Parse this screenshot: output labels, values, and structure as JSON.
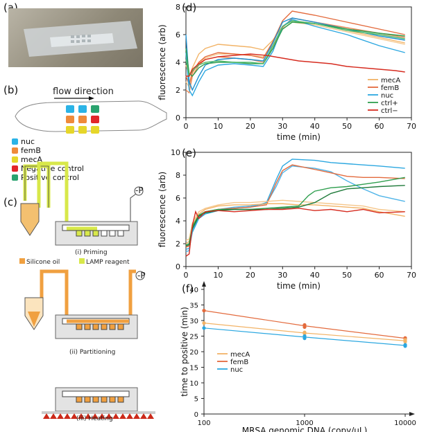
{
  "panels": {
    "a": "(a)",
    "b": "(b)",
    "c": "(c)",
    "d": "(d)",
    "e": "(e)",
    "f": "(f)"
  },
  "panel_b": {
    "flow_label": "flow direction",
    "legend": [
      {
        "label": "nuc",
        "color": "#2bb3e6"
      },
      {
        "label": "femB",
        "color": "#ef8a3a"
      },
      {
        "label": "mecA",
        "color": "#e6d62a"
      },
      {
        "label": "Negative control",
        "color": "#e2262a"
      },
      {
        "label": "Positive control",
        "color": "#2aa36f"
      }
    ],
    "grid": [
      [
        "#2bb3e6",
        "#2bb3e6",
        "#2aa36f"
      ],
      [
        "#ef8a3a",
        "#ef8a3a",
        "#e2262a"
      ],
      [
        "#e6d62a",
        "#e6d62a",
        "#e6d62a"
      ]
    ]
  },
  "panel_c": {
    "legend_oil": "Silicone oil",
    "legend_lamp": "LAMP reagent",
    "pump": "-P",
    "step1": "(i) Priming",
    "step2": "(ii) Partitioning",
    "step3": "(iii) Heating"
  },
  "colors": {
    "mecA": "#f2b366",
    "femB": "#e36a3c",
    "nuc": "#2ba7e0",
    "ctrl+": "#2e9e4e",
    "ctrl-": "#d62b1f",
    "oil": "#f0a040",
    "lamp": "#d8e84a"
  },
  "chart_data": [
    {
      "id": "d",
      "type": "line",
      "xlabel": "time (min)",
      "ylabel": "fluorescence (arb)",
      "xlim": [
        0,
        70
      ],
      "ylim": [
        0,
        8
      ],
      "xticks": [
        0,
        10,
        20,
        30,
        40,
        50,
        60,
        70
      ],
      "yticks": [
        0,
        2,
        4,
        6,
        8
      ],
      "legend": [
        "mecA",
        "femB",
        "nuc",
        "ctrl+",
        "ctrl−"
      ],
      "series": [
        {
          "name": "mecA",
          "color": "#f5c68a",
          "x": [
            0,
            1,
            2,
            4,
            6,
            10,
            15,
            20,
            24,
            27,
            30,
            33,
            40,
            50,
            60,
            68
          ],
          "y": [
            2.6,
            2.2,
            3.2,
            4.0,
            4.3,
            4.6,
            4.6,
            4.5,
            4.4,
            5.2,
            6.4,
            6.9,
            6.7,
            6.2,
            5.7,
            5.3
          ]
        },
        {
          "name": "mecA",
          "color": "#f2b366",
          "x": [
            0,
            1,
            2,
            4,
            6,
            10,
            15,
            20,
            24,
            27,
            30,
            33,
            40,
            50,
            60,
            68
          ],
          "y": [
            3.8,
            3.0,
            3.6,
            4.6,
            5.0,
            5.3,
            5.2,
            5.1,
            4.9,
            5.6,
            6.6,
            7.0,
            6.8,
            6.3,
            5.8,
            5.4
          ]
        },
        {
          "name": "femB",
          "color": "#e36a3c",
          "x": [
            0,
            1,
            2,
            4,
            6,
            10,
            15,
            20,
            24,
            27,
            30,
            33,
            40,
            50,
            60,
            68
          ],
          "y": [
            3.0,
            2.4,
            3.3,
            4.0,
            4.4,
            4.7,
            4.6,
            4.5,
            4.3,
            5.5,
            7.0,
            7.7,
            7.4,
            6.9,
            6.4,
            6.0
          ]
        },
        {
          "name": "femB",
          "color": "#e88a5a",
          "x": [
            0,
            1,
            2,
            4,
            6,
            10,
            15,
            20,
            24,
            27,
            30,
            33,
            40,
            50,
            60,
            68
          ],
          "y": [
            2.0,
            1.8,
            3.0,
            3.8,
            4.2,
            4.4,
            4.3,
            4.2,
            4.0,
            5.0,
            6.5,
            7.2,
            6.9,
            6.5,
            6.1,
            5.8
          ]
        },
        {
          "name": "nuc",
          "color": "#2ba7e0",
          "x": [
            0,
            1,
            2,
            4,
            6,
            10,
            15,
            20,
            24,
            27,
            30,
            33,
            40,
            50,
            60,
            68
          ],
          "y": [
            4.7,
            2.0,
            1.6,
            2.6,
            3.4,
            3.8,
            3.9,
            3.8,
            3.7,
            4.8,
            6.6,
            7.1,
            6.6,
            6.0,
            5.2,
            4.7
          ]
        },
        {
          "name": "nuc",
          "color": "#1f8fcf",
          "x": [
            0,
            1,
            2,
            4,
            6,
            10,
            15,
            20,
            24,
            27,
            30,
            33,
            40,
            50,
            60,
            68
          ],
          "y": [
            6.0,
            2.6,
            2.0,
            3.0,
            3.8,
            4.2,
            4.3,
            4.2,
            4.1,
            5.4,
            6.9,
            7.2,
            6.9,
            6.4,
            5.9,
            5.6
          ]
        },
        {
          "name": "ctrl+",
          "color": "#2e9e4e",
          "x": [
            0,
            1,
            2,
            4,
            6,
            10,
            15,
            20,
            24,
            27,
            30,
            33,
            40,
            50,
            60,
            68
          ],
          "y": [
            5.0,
            3.2,
            3.0,
            3.6,
            3.9,
            4.0,
            4.0,
            3.9,
            3.9,
            5.0,
            6.4,
            6.9,
            6.8,
            6.4,
            6.1,
            5.9
          ]
        },
        {
          "name": "ctrl+",
          "color": "#4fb86a",
          "x": [
            0,
            1,
            2,
            4,
            6,
            10,
            15,
            20,
            24,
            27,
            30,
            33,
            40,
            50,
            60,
            68
          ],
          "y": [
            4.2,
            3.0,
            3.4,
            3.8,
            4.0,
            4.1,
            4.0,
            4.0,
            3.9,
            5.2,
            6.6,
            7.0,
            6.8,
            6.3,
            6.0,
            5.7
          ]
        },
        {
          "name": "ctrl−",
          "color": "#d62b1f",
          "x": [
            0,
            1,
            2,
            4,
            6,
            10,
            15,
            20,
            25,
            30,
            35,
            40,
            45,
            50,
            55,
            60,
            65,
            68
          ],
          "y": [
            3.0,
            3.0,
            3.5,
            3.9,
            4.2,
            4.4,
            4.5,
            4.6,
            4.5,
            4.3,
            4.1,
            4.0,
            3.9,
            3.7,
            3.6,
            3.5,
            3.4,
            3.3
          ]
        }
      ]
    },
    {
      "id": "e",
      "type": "line",
      "xlabel": "time (min)",
      "ylabel": "fluorescence (arb)",
      "xlim": [
        0,
        70
      ],
      "ylim": [
        0,
        10
      ],
      "xticks": [
        0,
        10,
        20,
        30,
        40,
        50,
        60,
        70
      ],
      "yticks": [
        0,
        2,
        4,
        6,
        8,
        10
      ],
      "series": [
        {
          "name": "nuc",
          "color": "#2ba7e0",
          "x": [
            0,
            1,
            2,
            4,
            6,
            10,
            15,
            20,
            25,
            28,
            30,
            33,
            40,
            45,
            50,
            55,
            60,
            68
          ],
          "y": [
            1.5,
            1.6,
            3.0,
            4.2,
            4.6,
            4.9,
            5.1,
            5.2,
            5.6,
            7.6,
            8.8,
            9.4,
            9.3,
            9.1,
            9.0,
            8.9,
            8.8,
            8.6
          ]
        },
        {
          "name": "nuc",
          "color": "#4fb4e8",
          "x": [
            0,
            1,
            2,
            4,
            6,
            10,
            15,
            20,
            25,
            28,
            30,
            33,
            40,
            45,
            50,
            55,
            60,
            68
          ],
          "y": [
            1.3,
            1.4,
            3.2,
            4.3,
            4.7,
            5.0,
            5.2,
            5.3,
            5.5,
            7.0,
            8.2,
            8.8,
            8.6,
            8.3,
            7.5,
            6.8,
            6.2,
            5.7
          ]
        },
        {
          "name": "femB",
          "color": "#e36a3c",
          "x": [
            0,
            1,
            2,
            4,
            6,
            10,
            15,
            20,
            25,
            28,
            30,
            33,
            40,
            45,
            50,
            55,
            60,
            68
          ],
          "y": [
            1.7,
            1.8,
            3.4,
            4.4,
            4.8,
            5.0,
            5.1,
            5.2,
            5.4,
            7.3,
            8.4,
            8.9,
            8.5,
            8.2,
            7.9,
            7.8,
            7.8,
            7.7
          ]
        },
        {
          "name": "mecA",
          "color": "#f2b366",
          "x": [
            0,
            1,
            2,
            4,
            6,
            10,
            15,
            20,
            25,
            30,
            35,
            40,
            45,
            50,
            55,
            60,
            68
          ],
          "y": [
            2.0,
            2.2,
            3.6,
            4.6,
            5.0,
            5.3,
            5.4,
            5.4,
            5.5,
            5.5,
            5.4,
            5.4,
            5.3,
            5.2,
            5.1,
            4.8,
            4.4
          ]
        },
        {
          "name": "mecA",
          "color": "#f5c68a",
          "x": [
            0,
            1,
            2,
            4,
            6,
            10,
            15,
            20,
            25,
            30,
            35,
            40,
            45,
            50,
            55,
            60,
            68
          ],
          "y": [
            2.3,
            2.4,
            3.8,
            4.8,
            5.1,
            5.4,
            5.6,
            5.6,
            5.7,
            5.8,
            5.7,
            5.6,
            5.5,
            5.4,
            5.3,
            5.0,
            4.8
          ]
        },
        {
          "name": "ctrl+",
          "color": "#2e9e4e",
          "x": [
            0,
            1,
            2,
            4,
            6,
            10,
            15,
            20,
            25,
            30,
            35,
            38,
            40,
            45,
            50,
            55,
            60,
            68
          ],
          "y": [
            1.9,
            2.0,
            3.5,
            4.5,
            4.8,
            5.0,
            5.0,
            5.0,
            5.1,
            5.2,
            5.3,
            6.2,
            6.6,
            6.9,
            7.0,
            7.2,
            7.4,
            7.8
          ]
        },
        {
          "name": "ctrl+",
          "color": "#1f7a3a",
          "x": [
            0,
            1,
            2,
            4,
            6,
            10,
            15,
            20,
            25,
            30,
            35,
            40,
            45,
            50,
            55,
            60,
            68
          ],
          "y": [
            1.8,
            1.9,
            3.3,
            4.4,
            4.7,
            4.9,
            5.0,
            5.0,
            5.0,
            5.1,
            5.2,
            5.6,
            6.4,
            6.8,
            6.9,
            7.0,
            7.1
          ]
        },
        {
          "name": "ctrl−",
          "color": "#d62b1f",
          "x": [
            0,
            1,
            2,
            3,
            4,
            6,
            10,
            15,
            20,
            25,
            30,
            35,
            40,
            45,
            50,
            55,
            60,
            68
          ],
          "y": [
            0.9,
            1.1,
            3.6,
            4.8,
            4.2,
            4.8,
            4.9,
            4.8,
            4.9,
            5.0,
            5.0,
            5.1,
            4.9,
            5.0,
            4.8,
            5.0,
            4.7,
            4.8
          ]
        }
      ]
    },
    {
      "id": "f",
      "type": "scatter",
      "xlabel": "MRSA genomic DNA (copy/µL)",
      "ylabel": "time to positive (min)",
      "xscale": "log",
      "xlim": [
        100,
        10000
      ],
      "ylim": [
        0,
        40
      ],
      "xticks": [
        100,
        1000,
        10000
      ],
      "xticklabels": [
        "100",
        "1000",
        "10000"
      ],
      "yticks": [
        0,
        5,
        10,
        15,
        20,
        25,
        30,
        35,
        40
      ],
      "legend": [
        "mecA",
        "femB",
        "nuc"
      ],
      "series": [
        {
          "name": "femB",
          "color": "#e36a3c",
          "x": [
            100,
            1000,
            10000
          ],
          "y": [
            33.2,
            28.3,
            24.3
          ],
          "points": [
            [
              100,
              33.2
            ],
            [
              1000,
              28.6
            ],
            [
              1000,
              27.9
            ],
            [
              10000,
              24.4
            ],
            [
              10000,
              23.8
            ]
          ]
        },
        {
          "name": "mecA",
          "color": "#f2b366",
          "x": [
            100,
            1000,
            10000
          ],
          "y": [
            29.2,
            26.0,
            23.5
          ],
          "points": [
            [
              100,
              29.2
            ],
            [
              1000,
              26.2
            ],
            [
              1000,
              25.8
            ],
            [
              10000,
              23.8
            ],
            [
              10000,
              23.2
            ]
          ]
        },
        {
          "name": "nuc",
          "color": "#2ba7e0",
          "x": [
            100,
            1000,
            10000
          ],
          "y": [
            27.6,
            24.7,
            22.0
          ],
          "points": [
            [
              100,
              27.6
            ],
            [
              1000,
              25.0
            ],
            [
              1000,
              24.3
            ],
            [
              10000,
              22.2
            ],
            [
              10000,
              21.8
            ]
          ]
        }
      ]
    }
  ]
}
